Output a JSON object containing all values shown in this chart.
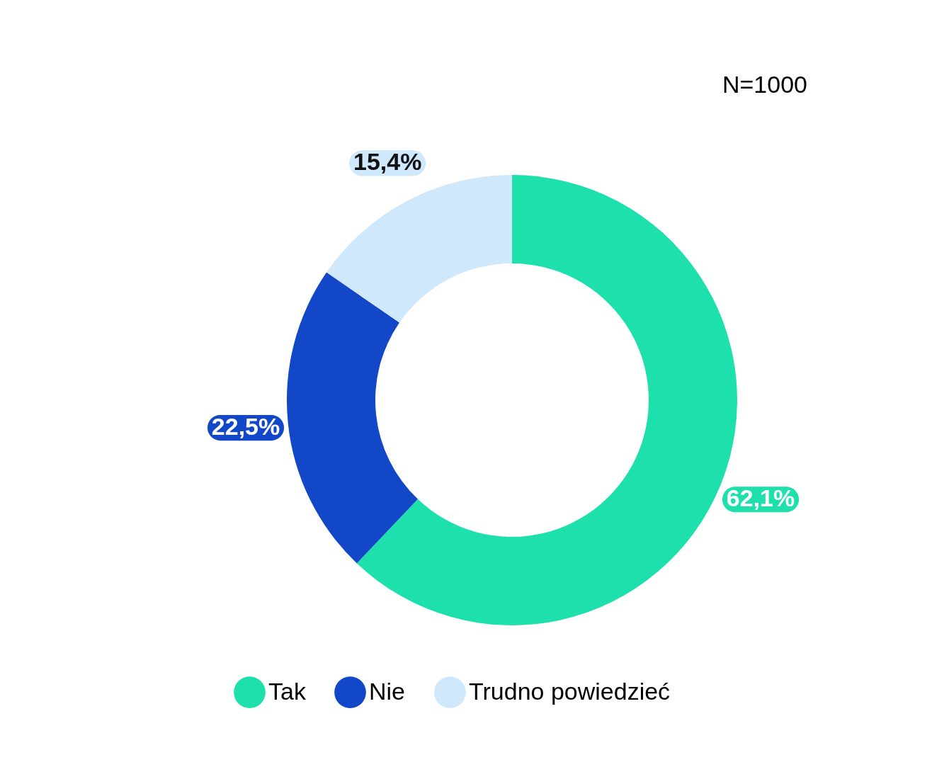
{
  "chart_data": {
    "type": "donut",
    "categories": [
      "Tak",
      "Nie",
      "Trudno powiedzieć"
    ],
    "values": [
      62.1,
      22.5,
      15.4
    ],
    "colors": [
      "#1de0ac",
      "#1248c8",
      "#d0e8fc"
    ],
    "value_labels": [
      "62,1%",
      "22,5%",
      "15,4%"
    ],
    "annotations": [
      "N=1000"
    ],
    "legend": "bottom"
  }
}
